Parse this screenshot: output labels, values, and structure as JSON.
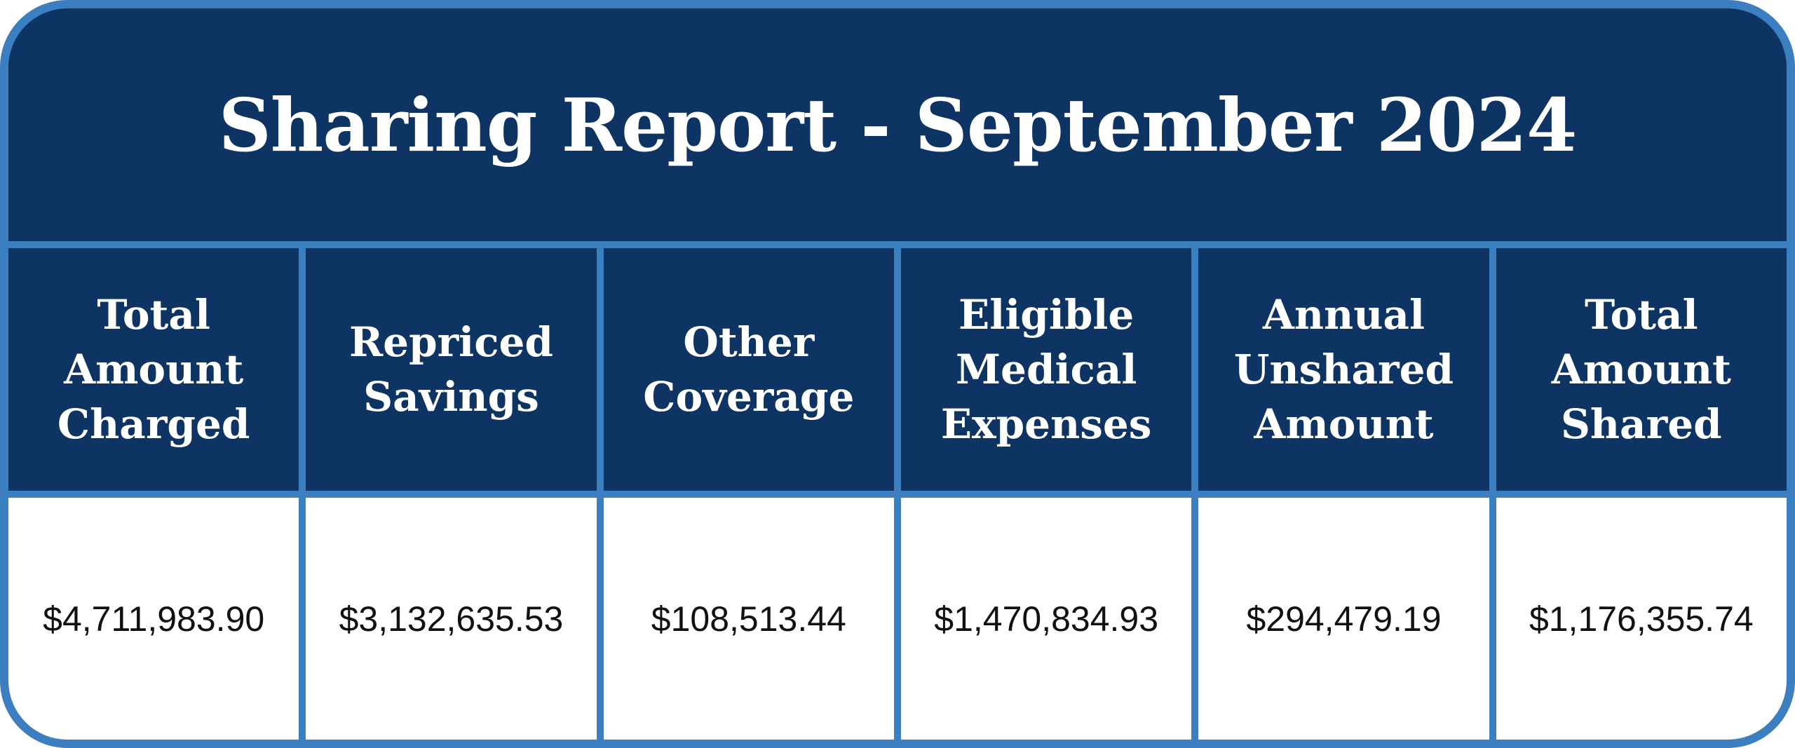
{
  "header": {
    "title": "Sharing Report - September 2024"
  },
  "table": {
    "headers": [
      "Total Amount Charged",
      "Repriced Savings",
      "Other Coverage",
      "Eligible Medical Expenses",
      "Annual Unshared Amount",
      "Total Amount Shared"
    ],
    "rows": [
      [
        "$4,711,983.90",
        "$3,132,635.53",
        "$108,513.44",
        "$1,470,834.93",
        "$294,479.19",
        "$1,176,355.74"
      ]
    ]
  }
}
